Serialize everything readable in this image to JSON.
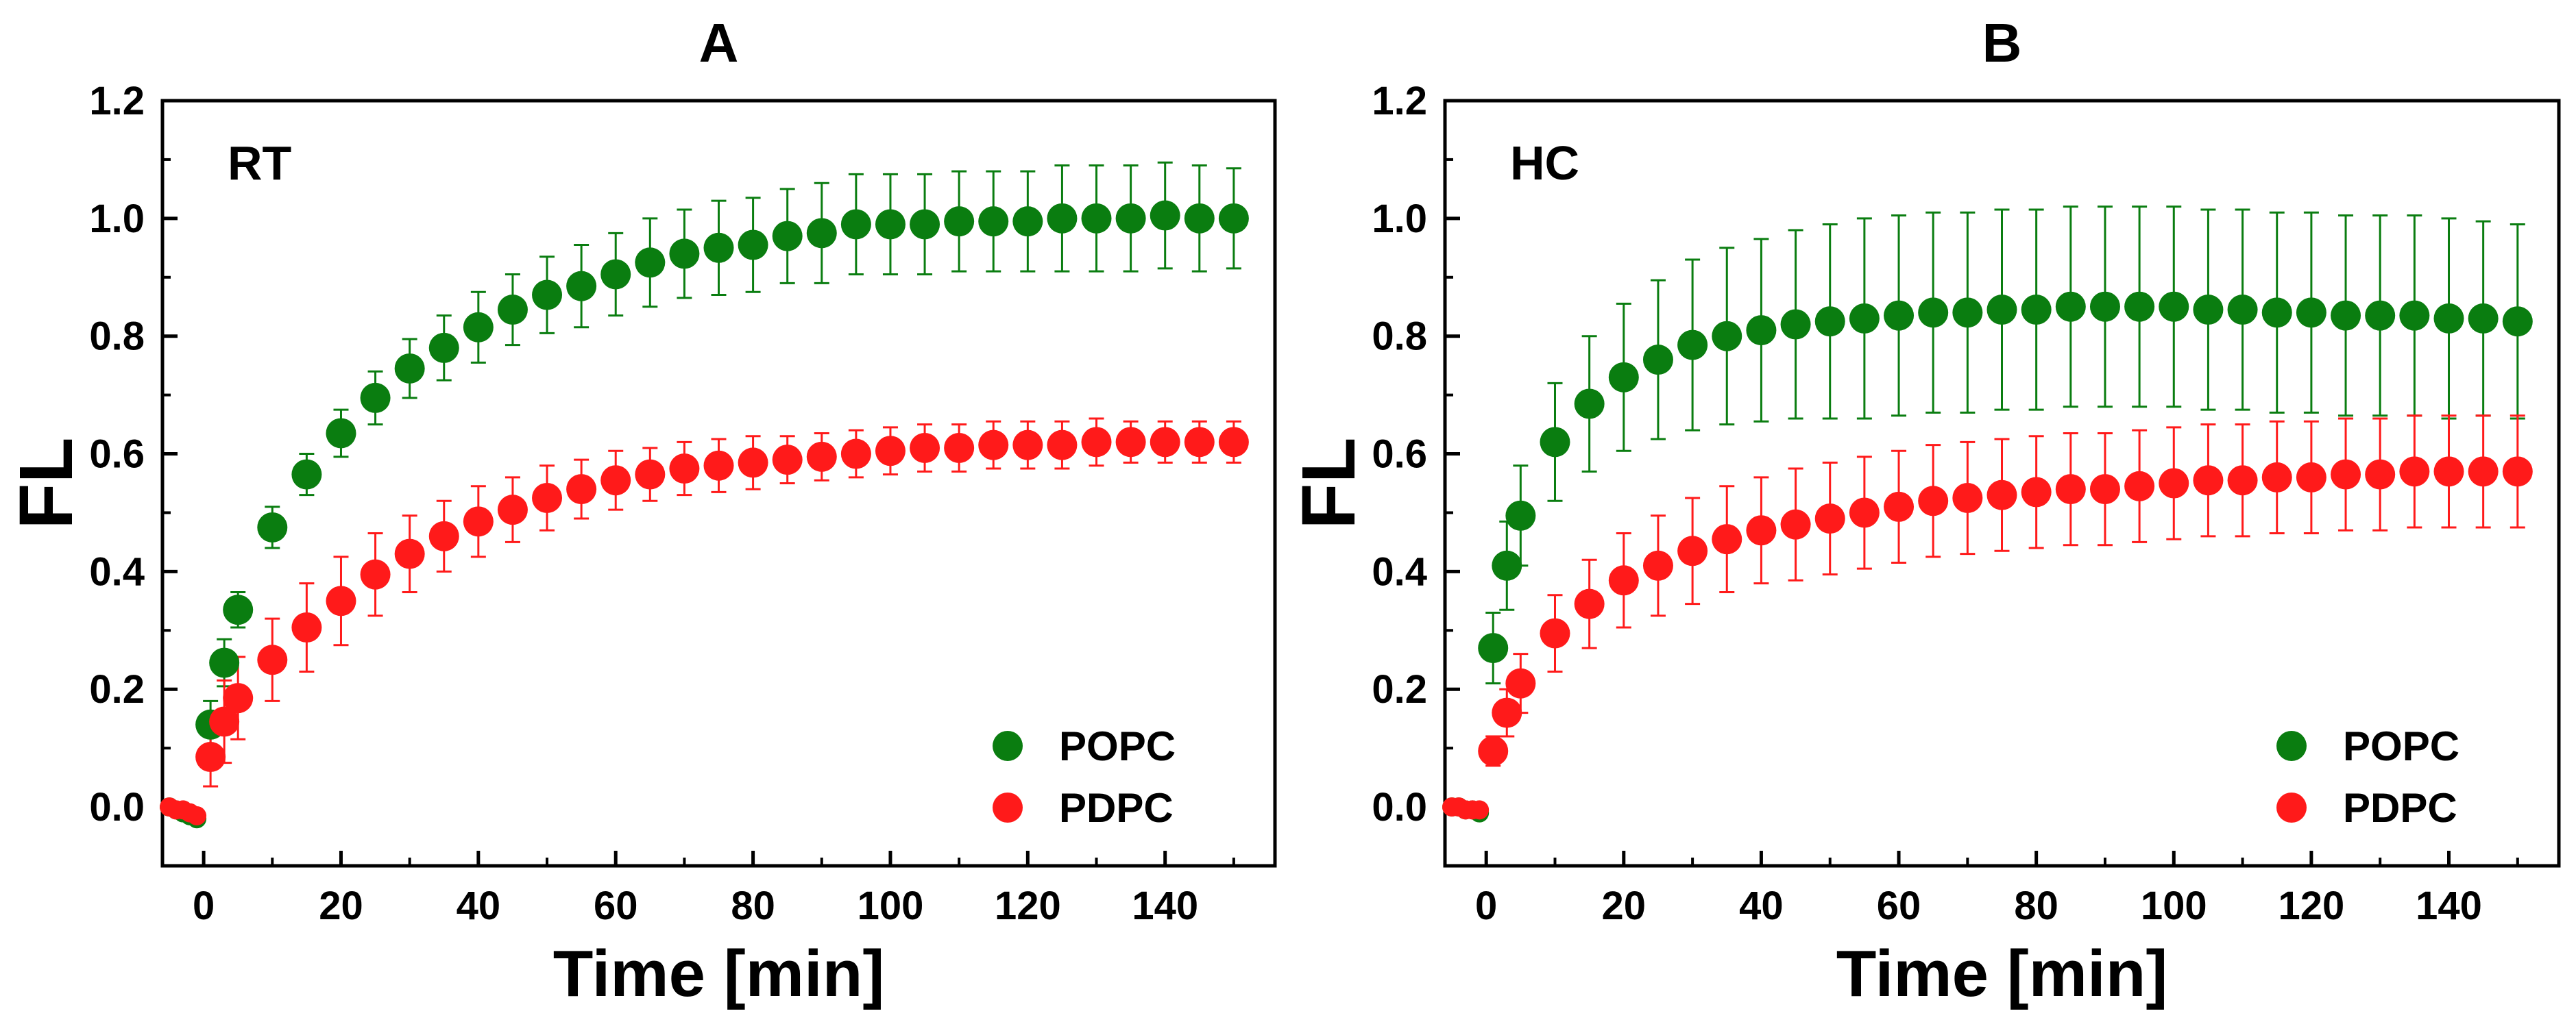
{
  "chart_data": [
    {
      "type": "scatter",
      "panel_label": "A",
      "annotation": "RT",
      "xlabel": "Time [min]",
      "ylabel": "FL",
      "xlim": [
        -6,
        156
      ],
      "ylim": [
        -0.1,
        1.2
      ],
      "xticks": [
        0,
        20,
        40,
        60,
        80,
        100,
        120,
        140
      ],
      "yticks": [
        0.0,
        0.2,
        0.4,
        0.6,
        0.8,
        1.0,
        1.2
      ],
      "ytick_labels": [
        "0.0",
        "0.2",
        "0.4",
        "0.6",
        "0.8",
        "1.0",
        "1.2"
      ],
      "legend_position": "bottom-right",
      "series": [
        {
          "name": "POPC",
          "color": "#0a7d10",
          "x": [
            -5,
            -4,
            -3,
            -2,
            -1,
            1,
            3,
            5,
            10,
            15,
            20,
            25,
            30,
            35,
            40,
            45,
            50,
            55,
            60,
            65,
            70,
            75,
            80,
            85,
            90,
            95,
            100,
            105,
            110,
            115,
            120,
            125,
            130,
            135,
            140,
            145,
            150
          ],
          "y": [
            0.0,
            -0.005,
            -0.01,
            -0.015,
            -0.02,
            0.14,
            0.245,
            0.335,
            0.475,
            0.565,
            0.635,
            0.695,
            0.745,
            0.78,
            0.815,
            0.845,
            0.87,
            0.885,
            0.905,
            0.925,
            0.94,
            0.95,
            0.955,
            0.97,
            0.975,
            0.99,
            0.99,
            0.99,
            0.995,
            0.995,
            0.995,
            1.0,
            1.0,
            1.0,
            1.005,
            1.0,
            1.0
          ],
          "err": [
            0,
            0,
            0,
            0,
            0,
            0.04,
            0.04,
            0.03,
            0.035,
            0.035,
            0.04,
            0.045,
            0.05,
            0.055,
            0.06,
            0.06,
            0.065,
            0.07,
            0.07,
            0.075,
            0.075,
            0.08,
            0.08,
            0.08,
            0.085,
            0.085,
            0.085,
            0.085,
            0.085,
            0.085,
            0.085,
            0.09,
            0.09,
            0.09,
            0.09,
            0.09,
            0.085
          ]
        },
        {
          "name": "PDPC",
          "color": "#ff1a1a",
          "x": [
            -5,
            -4,
            -3,
            -2,
            -1,
            1,
            3,
            5,
            10,
            15,
            20,
            25,
            30,
            35,
            40,
            45,
            50,
            55,
            60,
            65,
            70,
            75,
            80,
            85,
            90,
            95,
            100,
            105,
            110,
            115,
            120,
            125,
            130,
            135,
            140,
            145,
            150
          ],
          "y": [
            0.0,
            -0.005,
            -0.005,
            -0.01,
            -0.015,
            0.085,
            0.145,
            0.185,
            0.25,
            0.305,
            0.35,
            0.395,
            0.43,
            0.46,
            0.485,
            0.505,
            0.525,
            0.54,
            0.555,
            0.565,
            0.575,
            0.58,
            0.585,
            0.59,
            0.595,
            0.6,
            0.605,
            0.61,
            0.61,
            0.615,
            0.615,
            0.615,
            0.62,
            0.62,
            0.62,
            0.62,
            0.62
          ],
          "err": [
            0,
            0,
            0,
            0,
            0,
            0.05,
            0.07,
            0.07,
            0.07,
            0.075,
            0.075,
            0.07,
            0.065,
            0.06,
            0.06,
            0.055,
            0.055,
            0.05,
            0.05,
            0.045,
            0.045,
            0.045,
            0.045,
            0.04,
            0.04,
            0.04,
            0.04,
            0.04,
            0.04,
            0.04,
            0.04,
            0.04,
            0.04,
            0.035,
            0.035,
            0.035,
            0.035
          ]
        }
      ]
    },
    {
      "type": "scatter",
      "panel_label": "B",
      "annotation": "HC",
      "xlabel": "Time [min]",
      "ylabel": "FL",
      "xlim": [
        -6,
        156
      ],
      "ylim": [
        -0.1,
        1.2
      ],
      "xticks": [
        0,
        20,
        40,
        60,
        80,
        100,
        120,
        140
      ],
      "yticks": [
        0.0,
        0.2,
        0.4,
        0.6,
        0.8,
        1.0,
        1.2
      ],
      "ytick_labels": [
        "0.0",
        "0.2",
        "0.4",
        "0.6",
        "0.8",
        "1.0",
        "1.2"
      ],
      "legend_position": "bottom-right",
      "series": [
        {
          "name": "POPC",
          "color": "#0a7d10",
          "x": [
            -5,
            -4,
            -3,
            -2,
            -1,
            1,
            3,
            5,
            10,
            15,
            20,
            25,
            30,
            35,
            40,
            45,
            50,
            55,
            60,
            65,
            70,
            75,
            80,
            85,
            90,
            95,
            100,
            105,
            110,
            115,
            120,
            125,
            130,
            135,
            140,
            145,
            150
          ],
          "y": [
            0.0,
            0.0,
            -0.005,
            -0.005,
            -0.01,
            0.27,
            0.41,
            0.495,
            0.62,
            0.685,
            0.73,
            0.76,
            0.785,
            0.8,
            0.81,
            0.82,
            0.825,
            0.83,
            0.835,
            0.84,
            0.84,
            0.845,
            0.845,
            0.85,
            0.85,
            0.85,
            0.85,
            0.845,
            0.845,
            0.84,
            0.84,
            0.835,
            0.835,
            0.835,
            0.83,
            0.83,
            0.825
          ],
          "err": [
            0,
            0,
            0,
            0,
            0,
            0.06,
            0.075,
            0.085,
            0.1,
            0.115,
            0.125,
            0.135,
            0.145,
            0.15,
            0.155,
            0.16,
            0.165,
            0.17,
            0.17,
            0.17,
            0.17,
            0.17,
            0.17,
            0.17,
            0.17,
            0.17,
            0.17,
            0.17,
            0.17,
            0.17,
            0.17,
            0.17,
            0.17,
            0.17,
            0.17,
            0.165,
            0.165
          ]
        },
        {
          "name": "PDPC",
          "color": "#ff1a1a",
          "x": [
            -5,
            -4,
            -3,
            -2,
            -1,
            1,
            3,
            5,
            10,
            15,
            20,
            25,
            30,
            35,
            40,
            45,
            50,
            55,
            60,
            65,
            70,
            75,
            80,
            85,
            90,
            95,
            100,
            105,
            110,
            115,
            120,
            125,
            130,
            135,
            140,
            145,
            150
          ],
          "y": [
            0.0,
            0.0,
            -0.005,
            -0.005,
            -0.005,
            0.095,
            0.16,
            0.21,
            0.295,
            0.345,
            0.385,
            0.41,
            0.435,
            0.455,
            0.47,
            0.48,
            0.49,
            0.5,
            0.51,
            0.52,
            0.525,
            0.53,
            0.535,
            0.54,
            0.54,
            0.545,
            0.55,
            0.555,
            0.555,
            0.56,
            0.56,
            0.565,
            0.565,
            0.57,
            0.57,
            0.57,
            0.57
          ],
          "err": [
            0,
            0,
            0,
            0,
            0,
            0.025,
            0.04,
            0.05,
            0.065,
            0.075,
            0.08,
            0.085,
            0.09,
            0.09,
            0.09,
            0.095,
            0.095,
            0.095,
            0.095,
            0.095,
            0.095,
            0.095,
            0.095,
            0.095,
            0.095,
            0.095,
            0.095,
            0.095,
            0.095,
            0.095,
            0.095,
            0.095,
            0.095,
            0.095,
            0.095,
            0.095,
            0.095
          ]
        }
      ]
    }
  ]
}
